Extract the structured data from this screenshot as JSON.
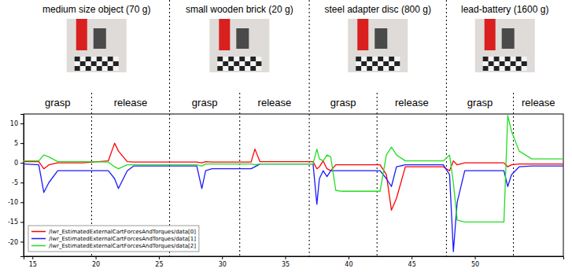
{
  "chart_data": {
    "type": "line",
    "objects": [
      {
        "label": "medium size object (70 g)",
        "start": 14.3,
        "end": 25.85
      },
      {
        "label": "small wooden brick (20 g)",
        "start": 25.85,
        "end": 36.9
      },
      {
        "label": "steel adapter disc (800 g)",
        "start": 36.9,
        "end": 47.75
      },
      {
        "label": "lead-battery (1600 g)",
        "start": 47.75,
        "end": 57.0
      }
    ],
    "phases": [
      {
        "label": "grasp",
        "start": 14.3,
        "end": 19.68
      },
      {
        "label": "release",
        "start": 19.68,
        "end": 25.85
      },
      {
        "label": "grasp",
        "start": 25.85,
        "end": 31.4
      },
      {
        "label": "release",
        "start": 31.4,
        "end": 36.9
      },
      {
        "label": "grasp",
        "start": 36.9,
        "end": 42.26
      },
      {
        "label": "release",
        "start": 42.26,
        "end": 47.75
      },
      {
        "label": "grasp",
        "start": 47.75,
        "end": 53.05
      },
      {
        "label": "release",
        "start": 53.05,
        "end": 57.0
      }
    ],
    "x": [
      14.3,
      15.5,
      15.9,
      16.3,
      17.0,
      19.0,
      21.0,
      21.5,
      21.8,
      22.5,
      23.0,
      28.0,
      28.4,
      28.7,
      29.2,
      32.3,
      32.6,
      33.0,
      37.2,
      37.5,
      37.7,
      38.0,
      38.3,
      38.6,
      39.0,
      39.5,
      42.5,
      43.0,
      43.4,
      43.8,
      44.5,
      47.5,
      48.0,
      48.3,
      48.6,
      49.2,
      52.3,
      52.6,
      52.9,
      53.5,
      54.5,
      57.0
    ],
    "series": [
      {
        "name": "/lwr_EstimatedExternalCartForcesAndTorques/data[0]",
        "color": "#ff0000",
        "values": [
          0.3,
          0.3,
          -1.5,
          -0.5,
          0,
          0,
          0.5,
          5.0,
          3.0,
          0.3,
          0.2,
          0.2,
          0.0,
          0.3,
          0.2,
          0.2,
          3.5,
          0.3,
          0.3,
          -1.5,
          -1.0,
          0.5,
          -1.5,
          -2.0,
          -0.5,
          -0.5,
          -0.5,
          -3.0,
          -12.0,
          -9.0,
          -1.0,
          -1.0,
          -2.0,
          0.5,
          -0.5,
          0.0,
          0.0,
          -1.0,
          -0.5,
          -0.3,
          -0.3,
          -0.3
        ]
      },
      {
        "name": "/lwr_EstimatedExternalCartForcesAndTorques/data[1]",
        "color": "#1a1aff",
        "values": [
          -0.3,
          -0.5,
          -7.5,
          -5.0,
          -2.0,
          -2.0,
          -2.0,
          -4.0,
          -6.5,
          -2.0,
          -0.8,
          -0.8,
          -6.5,
          -2.0,
          -1.5,
          -1.5,
          -1.0,
          -0.3,
          -0.3,
          -10.5,
          -4.0,
          -2.0,
          -3.5,
          -2.0,
          -2.0,
          -2.0,
          -2.0,
          -4.0,
          -6.0,
          -1.0,
          -0.5,
          -0.5,
          -3.0,
          -22.5,
          -10.0,
          -2.0,
          -2.0,
          -6.0,
          -3.0,
          -1.0,
          -0.8,
          -0.8
        ]
      },
      {
        "name": "/lwr_EstimatedExternalCartForcesAndTorques/data[2]",
        "color": "#22dd22",
        "values": [
          0.5,
          0.5,
          2.0,
          1.5,
          0.3,
          0.3,
          0.2,
          -1.0,
          -1.5,
          -0.5,
          -0.5,
          -0.5,
          -0.8,
          -0.3,
          -0.3,
          -0.3,
          -0.5,
          -0.3,
          -0.3,
          3.5,
          1.0,
          0.5,
          2.0,
          1.5,
          -7.0,
          -7.2,
          -7.2,
          2.0,
          4.0,
          2.0,
          0.5,
          0.5,
          2.0,
          -5.0,
          -14.5,
          -15.0,
          -15.0,
          12.0,
          8.0,
          3.0,
          1.0,
          1.0
        ]
      }
    ],
    "xlim": [
      14.3,
      57.0
    ],
    "ylim": [
      -23.7,
      12.4
    ],
    "xticks": [
      15,
      20,
      25,
      30,
      35,
      40,
      45,
      50
    ],
    "yticks": [
      -20,
      -15,
      -10,
      -5,
      0,
      5,
      10
    ],
    "grid": false,
    "legend": "lower left"
  }
}
